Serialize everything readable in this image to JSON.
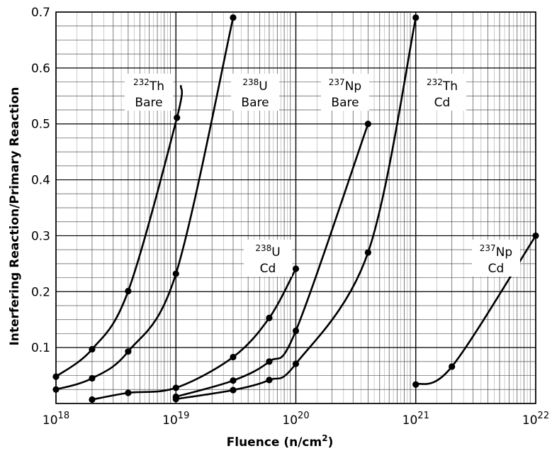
{
  "chart_data": {
    "type": "line",
    "title": "",
    "xlabel": "Fluence (n/cm²)",
    "xlabel_main": "Fluence (n/cm",
    "xlabel_sup": "2",
    "xlabel_end": ")",
    "ylabel": "Interfering Reaction/Primary Reaction",
    "x_scale": "log",
    "xlim": [
      1e+18,
      1e+22
    ],
    "ylim": [
      0.0,
      0.7
    ],
    "grid": true,
    "x_ticks": [
      {
        "base": "10",
        "exp": "18",
        "value": 1e+18
      },
      {
        "base": "10",
        "exp": "19",
        "value": 1e+19
      },
      {
        "base": "10",
        "exp": "20",
        "value": 1e+20
      },
      {
        "base": "10",
        "exp": "21",
        "value": 1e+21
      },
      {
        "base": "10",
        "exp": "22",
        "value": 1e+22
      }
    ],
    "y_ticks": [
      "0.1",
      "0.2",
      "0.3",
      "0.4",
      "0.5",
      "0.6",
      "0.7"
    ],
    "series": [
      {
        "name": "232Th Bare",
        "sup": "232",
        "sym": "Th",
        "cond": "Bare",
        "points": [
          [
            1e+18,
            0.048
          ],
          [
            2e+18,
            0.097
          ],
          [
            4e+18,
            0.201
          ],
          [
            1.02e+19,
            0.511
          ]
        ],
        "curve_end": [
          1.1e+19,
          0.568
        ]
      },
      {
        "name": "238U Bare",
        "sup": "238",
        "sym": "U",
        "cond": "Bare",
        "points": [
          [
            1e+18,
            0.025
          ],
          [
            2e+18,
            0.045
          ],
          [
            4e+18,
            0.093
          ],
          [
            1e+19,
            0.232
          ],
          [
            3e+19,
            0.69
          ]
        ]
      },
      {
        "name": "237Np Bare",
        "sup": "237",
        "sym": "Np",
        "cond": "Bare",
        "points": [
          [
            2e+18,
            0.007
          ],
          [
            4e+18,
            0.019
          ],
          [
            1e+19,
            0.028
          ],
          [
            3e+19,
            0.083
          ],
          [
            6e+19,
            0.153
          ],
          [
            1e+20,
            0.241
          ]
        ]
      },
      {
        "name": "232Th Cd",
        "sup": "232",
        "sym": "Th",
        "cond": "Cd",
        "points": [
          [
            1e+19,
            0.012
          ],
          [
            3e+19,
            0.041
          ],
          [
            6e+19,
            0.075
          ],
          [
            1e+20,
            0.13
          ],
          [
            4e+20,
            0.5
          ]
        ]
      },
      {
        "name": "238U Cd",
        "sup": "238",
        "sym": "U",
        "cond": "Cd",
        "points": [
          [
            1e+19,
            0.008
          ],
          [
            3e+19,
            0.024
          ],
          [
            6e+19,
            0.042
          ],
          [
            1e+20,
            0.071
          ],
          [
            4e+20,
            0.27
          ],
          [
            1e+21,
            0.69
          ]
        ]
      },
      {
        "name": "237Np Cd",
        "sup": "237",
        "sym": "Np",
        "cond": "Cd",
        "points": [
          [
            1e+21,
            0.034
          ],
          [
            2e+21,
            0.066
          ],
          [
            1e+22,
            0.3
          ]
        ]
      }
    ]
  }
}
